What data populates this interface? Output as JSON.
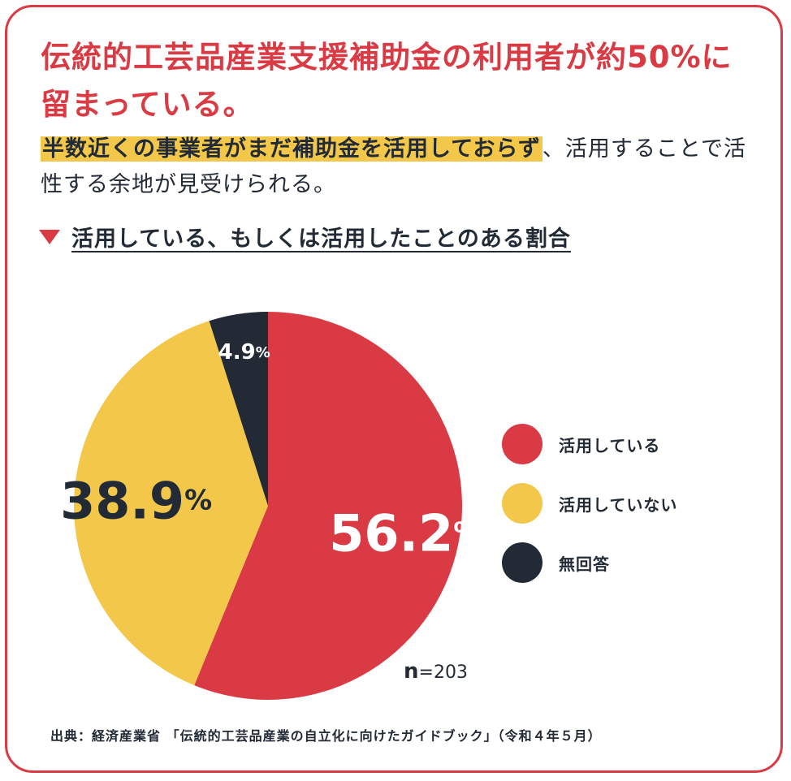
{
  "title": "伝統的工芸品産業支援補助金の利用者が約50%に留まっている。",
  "lead": {
    "highlight": "半数近くの事業者がまだ補助金を活用しておらず",
    "rest": "、活用することで活性する余地が見受けられる。"
  },
  "subhead": "活用している、もしくは活用したことのある割合",
  "chart_data": {
    "type": "pie",
    "unit": "%",
    "n_prefix": "n",
    "n_value": "=203",
    "slices": [
      {
        "label": "活用している",
        "value": 56.2,
        "display": "56.2",
        "color": "#d93a43",
        "text_color": "#ffffff"
      },
      {
        "label": "活用していない",
        "value": 38.9,
        "display": "38.9",
        "color": "#f3c84a",
        "text_color": "#222a36"
      },
      {
        "label": "無回答",
        "value": 4.9,
        "display": "4.9",
        "color": "#222a36",
        "text_color": "#ffffff"
      }
    ]
  },
  "source": "出典：経済産業省 「伝統的工芸品産業の自立化に向けたガイドブック」（令和４年５月）"
}
